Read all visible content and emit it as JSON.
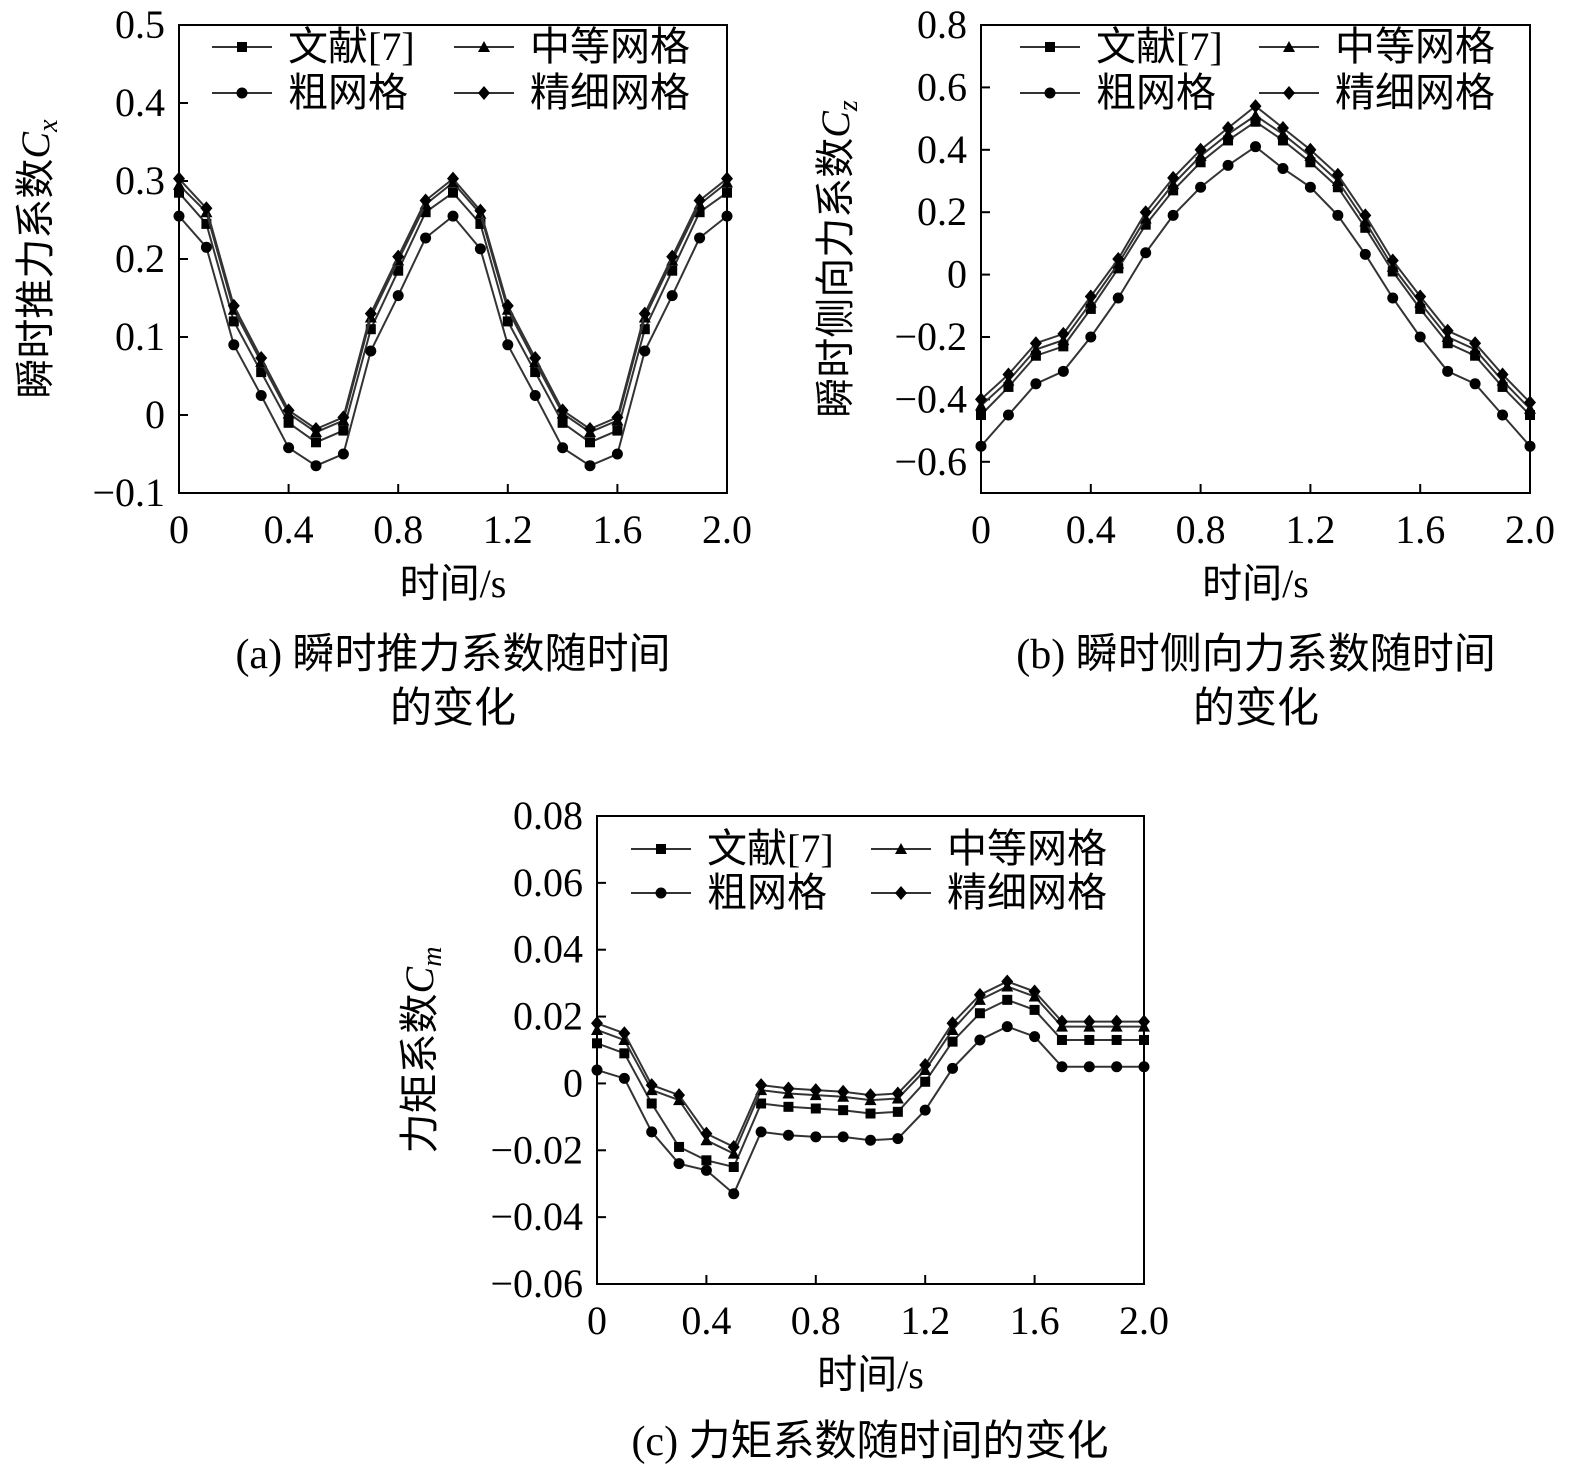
{
  "chart_data": [
    {
      "type": "line",
      "caption": "(a) 瞬时推力系数随时间",
      "caption_line2": "的变化",
      "xlabel": "时间/s",
      "ylabel": "瞬时推力系数",
      "ylabel_symbol": "C",
      "ylabel_subscript": "x",
      "xlim": [
        0,
        2.0
      ],
      "ylim": [
        -0.1,
        0.5
      ],
      "xticks": [
        "0",
        "0.4",
        "0.8",
        "1.2",
        "1.6",
        "2.0"
      ],
      "yticks": [
        "−0.1",
        "0",
        "0.1",
        "0.2",
        "0.3",
        "0.4",
        "0.5"
      ],
      "legend_placement": "top",
      "x": [
        0,
        0.1,
        0.2,
        0.3,
        0.4,
        0.5,
        0.6,
        0.7,
        0.8,
        0.9,
        1.0,
        1.1,
        1.2,
        1.3,
        1.4,
        1.5,
        1.6,
        1.7,
        1.8,
        1.9,
        2.0
      ],
      "series": [
        {
          "name": "文献[7]",
          "marker": "square",
          "values": [
            0.285,
            0.245,
            0.12,
            0.055,
            -0.01,
            -0.035,
            -0.02,
            0.11,
            0.185,
            0.26,
            0.285,
            0.245,
            0.12,
            0.055,
            -0.01,
            -0.035,
            -0.02,
            0.11,
            0.185,
            0.26,
            0.285
          ]
        },
        {
          "name": "中等网格",
          "marker": "triangle",
          "values": [
            0.295,
            0.26,
            0.135,
            0.068,
            0.002,
            -0.022,
            -0.007,
            0.125,
            0.198,
            0.27,
            0.298,
            0.258,
            0.135,
            0.068,
            0.002,
            -0.022,
            -0.007,
            0.125,
            0.198,
            0.27,
            0.298
          ]
        },
        {
          "name": "粗网格",
          "marker": "circle",
          "values": [
            0.255,
            0.215,
            0.09,
            0.025,
            -0.042,
            -0.065,
            -0.05,
            0.082,
            0.153,
            0.227,
            0.255,
            0.213,
            0.09,
            0.025,
            -0.042,
            -0.065,
            -0.05,
            0.082,
            0.153,
            0.227,
            0.255
          ]
        },
        {
          "name": "精细网格",
          "marker": "diamond",
          "values": [
            0.303,
            0.265,
            0.14,
            0.073,
            0.006,
            -0.018,
            -0.003,
            0.13,
            0.203,
            0.275,
            0.303,
            0.262,
            0.14,
            0.073,
            0.006,
            -0.018,
            -0.003,
            0.13,
            0.203,
            0.275,
            0.303
          ]
        }
      ]
    },
    {
      "type": "line",
      "caption": "(b) 瞬时侧向力系数随时间",
      "caption_line2": "的变化",
      "xlabel": "时间/s",
      "ylabel": "瞬时侧向力系数",
      "ylabel_symbol": "C",
      "ylabel_subscript": "z",
      "xlim": [
        0,
        2.0
      ],
      "ylim": [
        -0.7,
        0.8
      ],
      "xticks": [
        "0",
        "0.4",
        "0.8",
        "1.2",
        "1.6",
        "2.0"
      ],
      "yticks": [
        "−0.6",
        "−0.4",
        "−0.2",
        "0",
        "0.2",
        "0.4",
        "0.6",
        "0.8"
      ],
      "legend_placement": "top",
      "x": [
        0,
        0.1,
        0.2,
        0.3,
        0.4,
        0.5,
        0.6,
        0.7,
        0.8,
        0.9,
        1.0,
        1.1,
        1.2,
        1.3,
        1.4,
        1.5,
        1.6,
        1.7,
        1.8,
        1.9,
        2.0
      ],
      "series": [
        {
          "name": "文献[7]",
          "marker": "square",
          "values": [
            -0.45,
            -0.36,
            -0.26,
            -0.23,
            -0.11,
            0.02,
            0.16,
            0.27,
            0.36,
            0.43,
            0.49,
            0.43,
            0.36,
            0.28,
            0.15,
            0.01,
            -0.11,
            -0.22,
            -0.26,
            -0.36,
            -0.45
          ]
        },
        {
          "name": "中等网格",
          "marker": "triangle",
          "values": [
            -0.42,
            -0.34,
            -0.24,
            -0.21,
            -0.09,
            0.035,
            0.18,
            0.29,
            0.38,
            0.45,
            0.51,
            0.45,
            0.38,
            0.3,
            0.17,
            0.025,
            -0.09,
            -0.2,
            -0.24,
            -0.34,
            -0.43
          ]
        },
        {
          "name": "粗网格",
          "marker": "circle",
          "values": [
            -0.55,
            -0.45,
            -0.35,
            -0.31,
            -0.2,
            -0.075,
            0.07,
            0.19,
            0.28,
            0.35,
            0.41,
            0.34,
            0.28,
            0.19,
            0.065,
            -0.075,
            -0.2,
            -0.31,
            -0.35,
            -0.45,
            -0.55
          ]
        },
        {
          "name": "精细网格",
          "marker": "diamond",
          "values": [
            -0.4,
            -0.32,
            -0.22,
            -0.19,
            -0.07,
            0.05,
            0.2,
            0.31,
            0.4,
            0.47,
            0.54,
            0.47,
            0.4,
            0.32,
            0.19,
            0.045,
            -0.07,
            -0.18,
            -0.22,
            -0.32,
            -0.41
          ]
        }
      ]
    },
    {
      "type": "line",
      "caption": "(c) 力矩系数随时间的变化",
      "caption_line2": "",
      "xlabel": "时间/s",
      "ylabel": "力矩系数",
      "ylabel_symbol": "C",
      "ylabel_subscript": "m",
      "xlim": [
        0,
        2.0
      ],
      "ylim": [
        -0.06,
        0.08
      ],
      "xticks": [
        "0",
        "0.4",
        "0.8",
        "1.2",
        "1.6",
        "2.0"
      ],
      "yticks": [
        "−0.06",
        "−0.04",
        "−0.02",
        "0",
        "0.02",
        "0.04",
        "0.06",
        "0.08"
      ],
      "legend_placement": "top",
      "x": [
        0,
        0.1,
        0.2,
        0.3,
        0.4,
        0.5,
        0.6,
        0.7,
        0.8,
        0.9,
        1.0,
        1.1,
        1.2,
        1.3,
        1.4,
        1.5,
        1.6,
        1.7,
        1.8,
        1.9,
        2.0
      ],
      "series": [
        {
          "name": "文献[7]",
          "marker": "square",
          "values": [
            0.012,
            0.009,
            -0.006,
            -0.019,
            -0.023,
            -0.025,
            -0.006,
            -0.007,
            -0.0075,
            -0.008,
            -0.009,
            -0.0085,
            0.0005,
            0.0125,
            0.021,
            0.025,
            0.022,
            0.013,
            0.013,
            0.013,
            0.013
          ]
        },
        {
          "name": "中等网格",
          "marker": "triangle",
          "values": [
            0.016,
            0.013,
            -0.002,
            -0.005,
            -0.017,
            -0.021,
            -0.002,
            -0.003,
            -0.0035,
            -0.004,
            -0.005,
            -0.0045,
            0.004,
            0.016,
            0.025,
            0.029,
            0.026,
            0.017,
            0.017,
            0.017,
            0.017
          ]
        },
        {
          "name": "粗网格",
          "marker": "circle",
          "values": [
            0.004,
            0.0015,
            -0.0145,
            -0.024,
            -0.026,
            -0.033,
            -0.0145,
            -0.0155,
            -0.016,
            -0.016,
            -0.017,
            -0.0165,
            -0.008,
            0.0045,
            0.013,
            0.017,
            0.014,
            0.005,
            0.005,
            0.005,
            0.005
          ]
        },
        {
          "name": "精细网格",
          "marker": "diamond",
          "values": [
            0.018,
            0.015,
            -0.0005,
            -0.0035,
            -0.015,
            -0.019,
            -0.0005,
            -0.0015,
            -0.002,
            -0.0025,
            -0.0035,
            -0.003,
            0.0055,
            0.018,
            0.0265,
            0.0305,
            0.0275,
            0.0185,
            0.0185,
            0.0185,
            0.0185
          ]
        }
      ]
    }
  ]
}
